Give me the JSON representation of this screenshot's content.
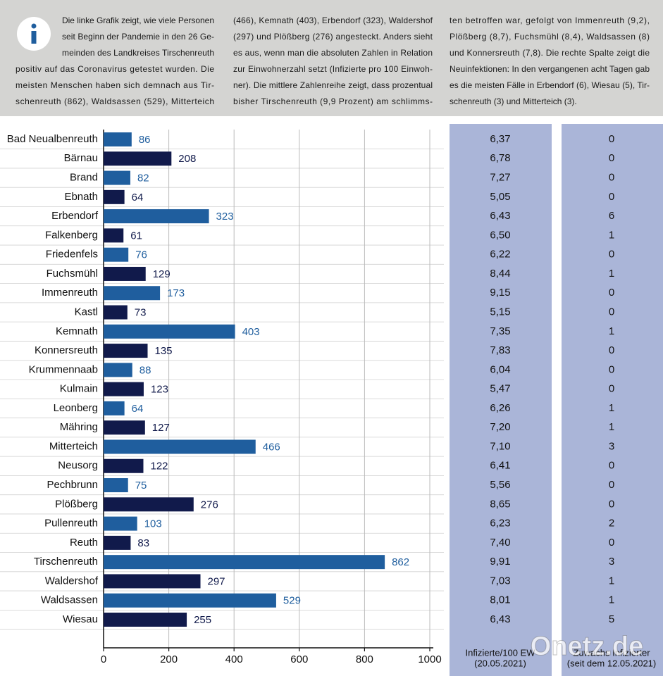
{
  "intro": {
    "columns": [
      [
        "Die linke Grafik zeigt, wie viele Personen",
        "seit Beginn der Pandemie in den 26 Ge-",
        "meinden des Landkreises Tirschenreuth",
        "positiv auf das Coronavirus getestet wurden. Die",
        "meisten Menschen haben sich demnach aus Tir-",
        "schenreuth (862), Waldsassen (529), Mitterteich"
      ],
      [
        "(466), Kemnath (403), Erbendorf (323), Waldershof",
        "(297) und Plößberg (276) angesteckt. Anders sieht",
        "es aus, wenn man die absoluten Zahlen in Relation",
        "zur Einwohnerzahl setzt (Infizierte pro 100 Einwoh-",
        "ner). Die mittlere Zahlenreihe zeigt, dass prozentual",
        "bisher Tirschenreuth (9,9 Prozent) am schlimms-"
      ],
      [
        "ten betroffen war, gefolgt von Immenreuth (9,2),",
        "Plößberg (8,7), Fuchsmühl (8,4), Waldsassen (8)",
        "und Konnersreuth (7,8). Die rechte Spalte zeigt die",
        "Neuinfektionen: In den vergangenen acht Tagen gab",
        "es die meisten Fälle in Erbendorf (6), Wiesau (5), Tir-",
        "schenreuth (3) und Mitterteich (3)."
      ]
    ]
  },
  "chart_data": {
    "type": "hbar",
    "categories": [
      "Bad Neualbenreuth",
      "Bärnau",
      "Brand",
      "Ebnath",
      "Erbendorf",
      "Falkenberg",
      "Friedenfels",
      "Fuchsmühl",
      "Immenreuth",
      "Kastl",
      "Kemnath",
      "Konnersreuth",
      "Krummennaab",
      "Kulmain",
      "Leonberg",
      "Mähring",
      "Mitterteich",
      "Neusorg",
      "Pechbrunn",
      "Plößberg",
      "Pullenreuth",
      "Reuth",
      "Tirschenreuth",
      "Waldershof",
      "Waldsassen",
      "Wiesau"
    ],
    "values": [
      86,
      208,
      82,
      64,
      323,
      61,
      76,
      129,
      173,
      73,
      403,
      135,
      88,
      123,
      64,
      127,
      466,
      122,
      75,
      276,
      103,
      83,
      862,
      297,
      529,
      255
    ],
    "colors": [
      "#1f5e9e",
      "#111a4b",
      "#1f5e9e",
      "#111a4b",
      "#1f5e9e",
      "#111a4b",
      "#1f5e9e",
      "#111a4b",
      "#1f5e9e",
      "#111a4b",
      "#1f5e9e",
      "#111a4b",
      "#1f5e9e",
      "#111a4b",
      "#1f5e9e",
      "#111a4b",
      "#1f5e9e",
      "#111a4b",
      "#1f5e9e",
      "#111a4b",
      "#1f5e9e",
      "#111a4b",
      "#1f5e9e",
      "#111a4b",
      "#1f5e9e",
      "#111a4b"
    ],
    "xlim": [
      0,
      1000
    ],
    "xticks": [
      0,
      200,
      400,
      600,
      800,
      1000
    ],
    "grid": true
  },
  "table": {
    "columns": [
      {
        "header": [
          "Infizierte/100 EW",
          "(20.05.2021)"
        ],
        "values": [
          "6,37",
          "6,78",
          "7,27",
          "5,05",
          "6,43",
          "6,50",
          "6,22",
          "8,44",
          "9,15",
          "5,15",
          "7,35",
          "7,83",
          "6,04",
          "5,47",
          "6,26",
          "7,20",
          "7,10",
          "6,41",
          "5,56",
          "8,65",
          "6,23",
          "7,40",
          "9,91",
          "7,03",
          "8,01",
          "6,43"
        ]
      },
      {
        "header": [
          "Zuwachs Infizierter",
          "(seit dem 12.05.2021)"
        ],
        "values": [
          0,
          0,
          0,
          0,
          6,
          1,
          0,
          1,
          0,
          0,
          1,
          0,
          0,
          0,
          1,
          1,
          3,
          0,
          0,
          0,
          2,
          0,
          3,
          1,
          1,
          5
        ]
      }
    ]
  },
  "watermark": "Onetz.de"
}
